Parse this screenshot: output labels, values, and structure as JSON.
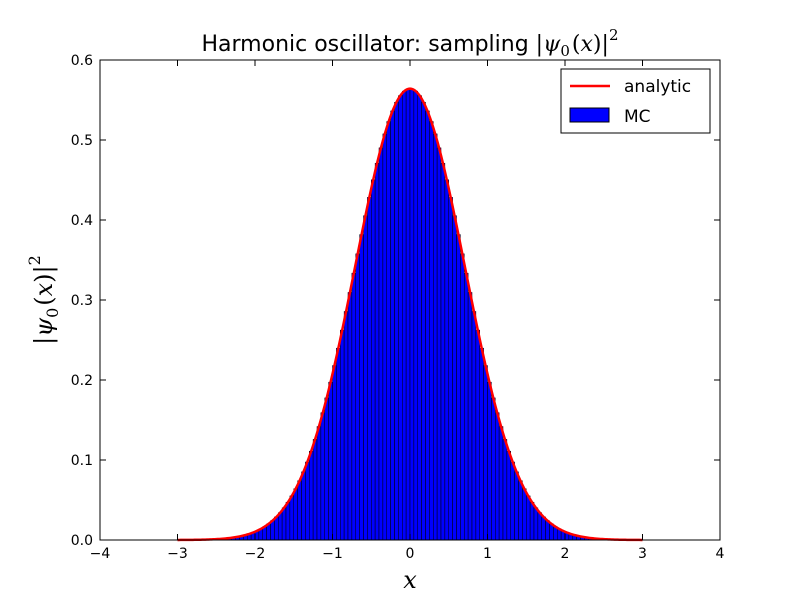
{
  "chart_data": {
    "type": "bar",
    "title": {
      "prefix": "Harmonic oscillator: sampling ",
      "open_bar": "|",
      "psi": "ψ",
      "subscript": "0",
      "open_paren": "(",
      "var": "x",
      "close_paren": ")",
      "close_bar": "|",
      "superscript": "2"
    },
    "xlabel": "x",
    "ylabel": {
      "open_bar": "|",
      "psi": "ψ",
      "subscript": "0",
      "open_paren": "(",
      "var": "x",
      "close_paren": ")",
      "close_bar": "|",
      "superscript": "2"
    },
    "xlim": [
      -4,
      4
    ],
    "ylim": [
      0,
      0.6
    ],
    "xticks": [
      "−4",
      "−3",
      "−2",
      "−1",
      "0",
      "1",
      "2",
      "3",
      "4"
    ],
    "xtick_values": [
      -4,
      -3,
      -2,
      -1,
      0,
      1,
      2,
      3,
      4
    ],
    "yticks": [
      "0.0",
      "0.1",
      "0.2",
      "0.3",
      "0.4",
      "0.5",
      "0.6"
    ],
    "ytick_values": [
      0,
      0.1,
      0.2,
      0.3,
      0.4,
      0.5,
      0.6
    ],
    "grid": false,
    "legend_position": "upper right",
    "histogram": {
      "name": "MC",
      "color": "#0000ff",
      "edge_color": "#000000",
      "range": [
        -3.3,
        3.9
      ],
      "bins": 144
    },
    "analytic": {
      "name": "analytic",
      "color": "#ff0000",
      "x_range": [
        -3,
        3
      ],
      "formula": "exp(-x^2)/sqrt(pi)",
      "peak": 0.5642
    }
  }
}
